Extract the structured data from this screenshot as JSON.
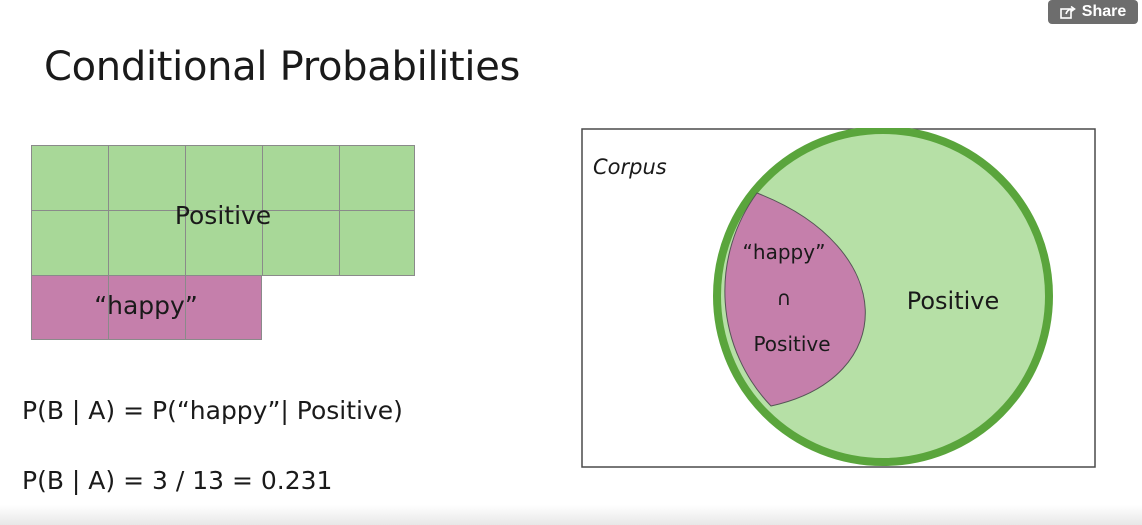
{
  "share": {
    "label": "Share",
    "icon": "share-icon"
  },
  "title": "Conditional Probabilities",
  "grid": {
    "positive_label": "Positive",
    "happy_label": "“happy”",
    "positive_cells": 10,
    "happy_cells": 3,
    "positive_color": "#a8d898",
    "happy_color": "#c57fab"
  },
  "formulas": {
    "line1": "P(B | A) = P(“happy”| Positive)",
    "line2": "P(B | A) = 3 / 13 = 0.231"
  },
  "venn": {
    "corpus_label": "Corpus",
    "positive_label": "Positive",
    "happy_label": "“happy”",
    "intersection_symbol": "∩",
    "intersection_label": "Positive",
    "outer_fill": "#b6e0a6",
    "outer_stroke": "#5aa53c",
    "intersection_fill": "#c57fab"
  }
}
